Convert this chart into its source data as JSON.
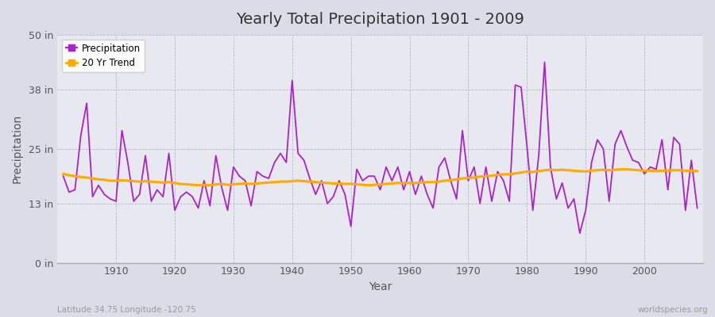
{
  "title": "Yearly Total Precipitation 1901 - 2009",
  "xlabel": "Year",
  "ylabel": "Precipitation",
  "subtitle_left": "Latitude 34.75 Longitude -120.75",
  "subtitle_right": "worldspecies.org",
  "legend_entries": [
    "Precipitation",
    "20 Yr Trend"
  ],
  "precip_color": "#aa22cc",
  "trend_color": "#ffaa00",
  "background_color": "#dcdce8",
  "plot_bg_color": "#e8e8f0",
  "grid_color": "#b8b8cc",
  "yticks": [
    0,
    13,
    25,
    38,
    50
  ],
  "ytick_labels": [
    "0 in",
    "13 in",
    "25 in",
    "38 in",
    "50 in"
  ],
  "ylim": [
    0,
    50
  ],
  "years": [
    1901,
    1902,
    1903,
    1904,
    1905,
    1906,
    1907,
    1908,
    1909,
    1910,
    1911,
    1912,
    1913,
    1914,
    1915,
    1916,
    1917,
    1918,
    1919,
    1920,
    1921,
    1922,
    1923,
    1924,
    1925,
    1926,
    1927,
    1928,
    1929,
    1930,
    1931,
    1932,
    1933,
    1934,
    1935,
    1936,
    1937,
    1938,
    1939,
    1940,
    1941,
    1942,
    1943,
    1944,
    1945,
    1946,
    1947,
    1948,
    1949,
    1950,
    1951,
    1952,
    1953,
    1954,
    1955,
    1956,
    1957,
    1958,
    1959,
    1960,
    1961,
    1962,
    1963,
    1964,
    1965,
    1966,
    1967,
    1968,
    1969,
    1970,
    1971,
    1972,
    1973,
    1974,
    1975,
    1976,
    1977,
    1978,
    1979,
    1980,
    1981,
    1982,
    1983,
    1984,
    1985,
    1986,
    1987,
    1988,
    1989,
    1990,
    1991,
    1992,
    1993,
    1994,
    1995,
    1996,
    1997,
    1998,
    1999,
    2000,
    2001,
    2002,
    2003,
    2004,
    2005,
    2006,
    2007,
    2008,
    2009
  ],
  "precip": [
    19.0,
    15.5,
    16.0,
    28.0,
    35.0,
    14.5,
    17.0,
    15.0,
    14.0,
    13.5,
    29.0,
    22.0,
    13.5,
    15.0,
    23.5,
    13.5,
    16.0,
    14.5,
    24.0,
    11.5,
    14.5,
    15.5,
    14.5,
    12.0,
    18.0,
    12.5,
    23.5,
    16.5,
    11.5,
    21.0,
    19.0,
    18.0,
    12.5,
    20.0,
    19.0,
    18.5,
    22.0,
    24.0,
    22.0,
    40.0,
    24.0,
    22.5,
    18.5,
    15.0,
    18.0,
    13.0,
    14.5,
    18.0,
    15.0,
    8.0,
    20.5,
    18.0,
    19.0,
    19.0,
    16.0,
    21.0,
    18.0,
    21.0,
    16.0,
    20.0,
    15.0,
    19.0,
    15.0,
    12.0,
    21.0,
    23.0,
    18.0,
    14.0,
    29.0,
    18.0,
    21.0,
    13.0,
    21.0,
    13.5,
    20.0,
    18.0,
    13.5,
    39.0,
    38.5,
    25.5,
    11.5,
    23.5,
    44.0,
    21.0,
    14.0,
    17.5,
    12.0,
    14.0,
    6.5,
    11.5,
    22.0,
    27.0,
    25.0,
    13.5,
    26.0,
    29.0,
    25.5,
    22.5,
    22.0,
    19.5,
    21.0,
    20.5,
    27.0,
    16.0,
    27.5,
    26.0,
    11.5,
    22.5,
    12.0
  ],
  "trend": [
    19.5,
    19.2,
    19.0,
    18.8,
    18.7,
    18.5,
    18.3,
    18.2,
    18.0,
    18.0,
    18.1,
    18.0,
    17.9,
    17.8,
    17.9,
    17.8,
    17.7,
    17.6,
    17.7,
    17.5,
    17.3,
    17.2,
    17.1,
    17.0,
    17.1,
    17.0,
    17.2,
    17.3,
    17.1,
    17.2,
    17.3,
    17.4,
    17.3,
    17.4,
    17.5,
    17.6,
    17.7,
    17.8,
    17.8,
    17.9,
    18.0,
    17.9,
    17.8,
    17.7,
    17.6,
    17.5,
    17.4,
    17.4,
    17.3,
    17.3,
    17.2,
    17.1,
    17.0,
    17.1,
    17.2,
    17.3,
    17.4,
    17.5,
    17.5,
    17.5,
    17.5,
    17.6,
    17.7,
    17.7,
    17.8,
    18.0,
    18.1,
    18.3,
    18.5,
    18.6,
    18.7,
    18.9,
    19.0,
    19.1,
    19.3,
    19.4,
    19.4,
    19.6,
    19.8,
    20.0,
    19.9,
    20.1,
    20.3,
    20.4,
    20.3,
    20.4,
    20.3,
    20.2,
    20.1,
    20.0,
    20.2,
    20.3,
    20.4,
    20.3,
    20.4,
    20.5,
    20.5,
    20.4,
    20.3,
    20.2,
    20.2,
    20.1,
    20.2,
    20.2,
    20.3,
    20.3,
    20.2,
    20.2,
    20.1
  ]
}
